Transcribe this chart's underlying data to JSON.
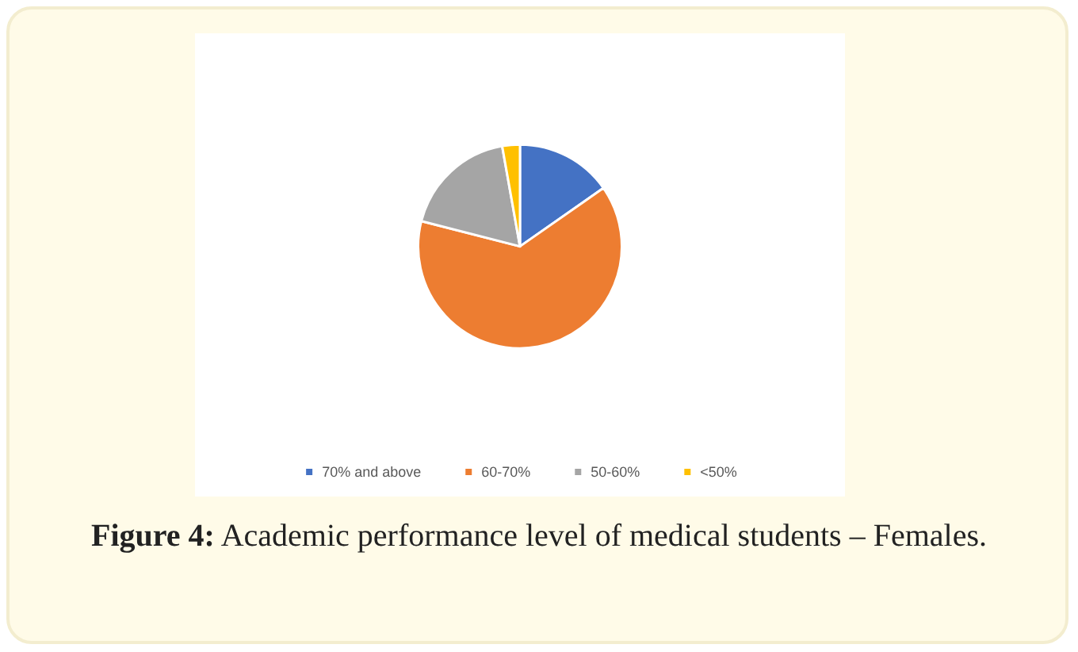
{
  "chart_data": {
    "type": "pie",
    "title": "Figure 4: Academic performance level of medical students – Females.",
    "categories": [
      "70% and above",
      "60-70%",
      "50-60%",
      "<50%"
    ],
    "values": [
      15.3,
      63.7,
      18.2,
      2.8
    ],
    "colors": [
      "#4472c4",
      "#ed7d31",
      "#a5a5a5",
      "#ffc000"
    ],
    "legend": "bottom"
  }
}
